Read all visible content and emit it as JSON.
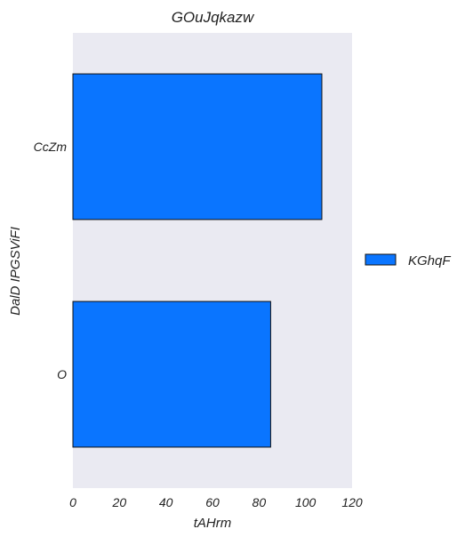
{
  "chart_data": {
    "type": "bar",
    "orientation": "horizontal",
    "title": "GOuJqkazw",
    "xlabel": "tAHrm",
    "ylabel": "DalD IPGSViFI",
    "categories": [
      "CcZm",
      "O"
    ],
    "series": [
      {
        "name": "KGhqF",
        "values": [
          107,
          85
        ],
        "color": "#0a75ff"
      }
    ],
    "xlim": [
      0,
      120
    ],
    "xticks": [
      0,
      20,
      40,
      60,
      80,
      100,
      120
    ],
    "grid": false,
    "legend_position": "right",
    "plot_background": "#eaeaf2",
    "bar_edge_color": "#111111"
  }
}
